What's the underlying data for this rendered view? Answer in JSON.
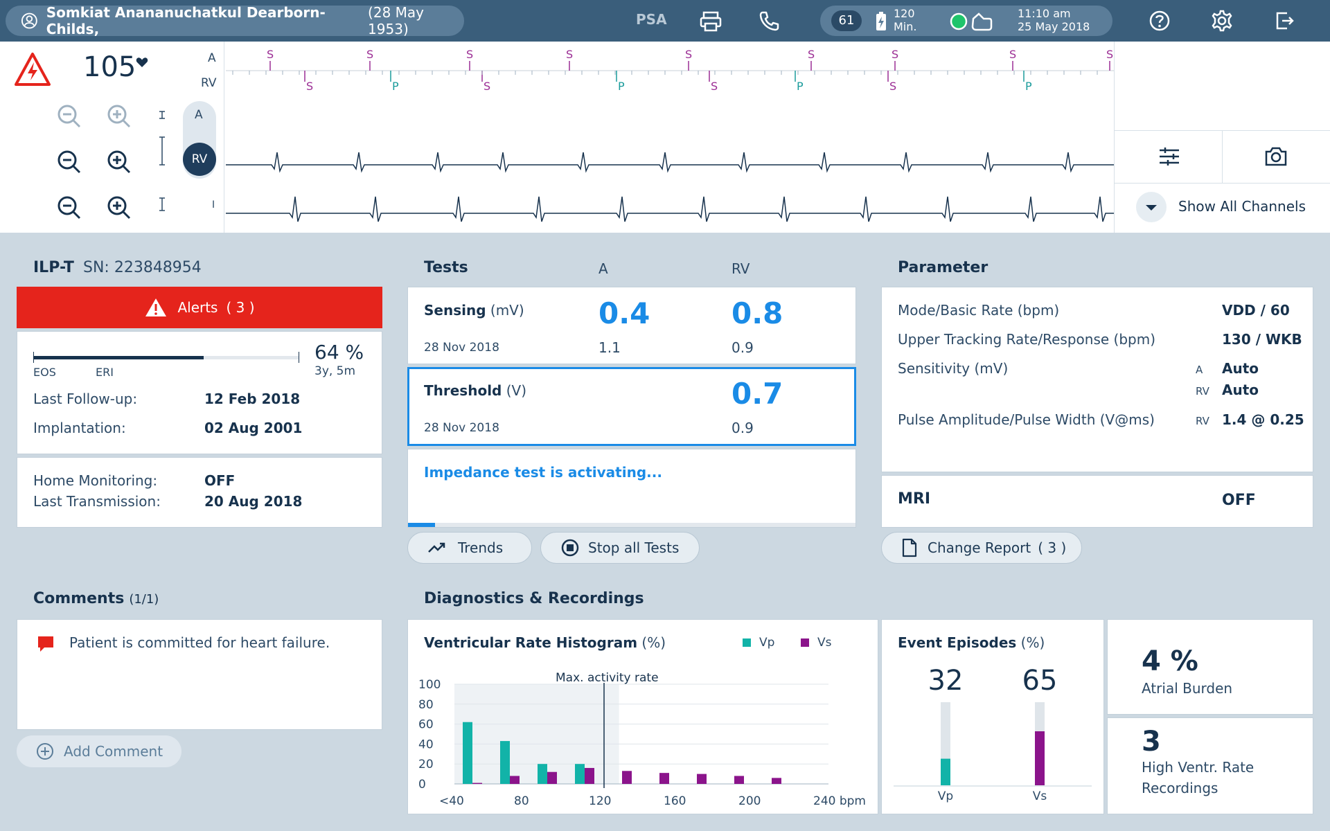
{
  "patient": {
    "name": "Somkiat Anananuchatkul Dearborn-Childs,",
    "dob": "(28 May 1953)"
  },
  "topbar": {
    "psa_label": "PSA",
    "heart_rate_badge": "61",
    "battery_value": "120",
    "battery_unit": "Min.",
    "time": "11:10 am",
    "date": "25 May 2018",
    "icons": [
      "user-icon",
      "printer-icon",
      "phone-icon",
      "battery-icon",
      "status-ok-icon",
      "device-icon",
      "help-icon",
      "gear-icon",
      "exit-icon"
    ]
  },
  "ecg": {
    "heart_rate": "105",
    "marker_channels": [
      "A",
      "RV"
    ],
    "marker_labels": {
      "sense": "S",
      "pace": "P"
    },
    "channel_selector": [
      "A",
      "RV"
    ],
    "lead_label": "I",
    "colors": {
      "atrial_marker": "#9b2d94",
      "ventricular_pace": "#1a9b9b",
      "trace": "#17324d"
    }
  },
  "ecg_controls": {
    "show_all_channels": "Show All Channels",
    "icons": [
      "settings-sliders-icon",
      "camera-icon",
      "chevron-down-icon"
    ]
  },
  "device": {
    "model": "ILP-T",
    "serial": "SN: 223848954",
    "alerts_label": "Alerts",
    "alerts_count": "( 3 )",
    "battery_percent": "64 %",
    "battery_remaining": "3y, 5m",
    "battery_level": 0.64,
    "eos_label": "EOS",
    "eri_label": "ERI",
    "last_followup_label": "Last Follow-up:",
    "last_followup_value": "12 Feb 2018",
    "implantation_label": "Implantation:",
    "implantation_value": "02 Aug 2001",
    "home_monitoring_label": "Home Monitoring:",
    "home_monitoring_value": "OFF",
    "last_transmission_label": "Last Transmission:",
    "last_transmission_value": "20 Aug 2018"
  },
  "tests": {
    "title": "Tests",
    "col_a": "A",
    "col_rv": "RV",
    "sensing_label": "Sensing",
    "sensing_unit": "(mV)",
    "sensing_a": "0.4",
    "sensing_rv": "0.8",
    "sensing_date": "28 Nov 2018",
    "sensing_prev_a": "1.1",
    "sensing_prev_rv": "0.9",
    "threshold_label": "Threshold",
    "threshold_unit": "(V)",
    "threshold_rv": "0.7",
    "threshold_date": "28 Nov 2018",
    "threshold_prev_rv": "0.9",
    "impedance_status": "Impedance test is activating...",
    "impedance_progress": 0.06,
    "trends_button": "Trends",
    "stop_button": "Stop all Tests"
  },
  "parameter": {
    "title": "Parameter",
    "rows": [
      {
        "label": "Mode/Basic Rate (bpm)",
        "chamber": "",
        "value": "VDD / 60"
      },
      {
        "label": "Upper Tracking Rate/Response (bpm)",
        "chamber": "",
        "value": "130 / WKB"
      },
      {
        "label": "Sensitivity (mV)",
        "chamber": "A",
        "value": "Auto"
      },
      {
        "label": "",
        "chamber": "RV",
        "value": "Auto"
      },
      {
        "label": "Pulse Amplitude/Pulse Width (V@ms)",
        "chamber": "RV",
        "value": "1.4 @ 0.25"
      }
    ],
    "mri_label": "MRI",
    "mri_value": "OFF",
    "change_report_label": "Change Report",
    "change_report_count": "( 3 )"
  },
  "comments": {
    "title": "Comments",
    "count": "(1/1)",
    "items": [
      "Patient is committed for heart failure."
    ],
    "add_label": "Add Comment"
  },
  "diagnostics": {
    "title": "Diagnostics & Recordings",
    "histogram_title": "Ventricular Rate Histogram",
    "histogram_unit": "(%)",
    "legend_vp": "Vp",
    "legend_vs": "Vs",
    "annotation": "Max. activity rate",
    "event_title": "Event Episodes",
    "event_unit": "(%)",
    "event_vp": "32",
    "event_vs": "65",
    "event_vp_label": "Vp",
    "event_vs_label": "Vs",
    "atrial_burden_value": "4 %",
    "atrial_burden_label": "Atrial Burden",
    "hvr_value": "3",
    "hvr_label_1": "High Ventr. Rate",
    "hvr_label_2": "Recordings",
    "colors": {
      "vp": "#12b3a8",
      "vs": "#8b148b"
    }
  },
  "chart_data": [
    {
      "type": "bar",
      "title": "Ventricular Rate Histogram (%)",
      "categories": [
        "<40",
        "60",
        "80",
        "100",
        "120",
        "140",
        "160",
        "180",
        "200",
        "220"
      ],
      "tick_labels": [
        "<40",
        "80",
        "120",
        "160",
        "200",
        "240 bpm"
      ],
      "series": [
        {
          "name": "Vp",
          "values": [
            62,
            43,
            20,
            20,
            0,
            0,
            0,
            0,
            0,
            0
          ]
        },
        {
          "name": "Vs",
          "values": [
            1,
            8,
            12,
            16,
            13,
            11,
            10,
            8,
            6,
            0
          ]
        }
      ],
      "yticks": [
        "100",
        "80",
        "60",
        "40",
        "20",
        "0"
      ],
      "ylim": [
        0,
        100
      ],
      "annotation_x": 120,
      "grid": true,
      "legend": "top-right"
    },
    {
      "type": "bar",
      "title": "Event Episodes (%)",
      "categories": [
        "Vp",
        "Vs"
      ],
      "values": [
        32,
        65
      ],
      "ylim": [
        0,
        100
      ]
    }
  ]
}
